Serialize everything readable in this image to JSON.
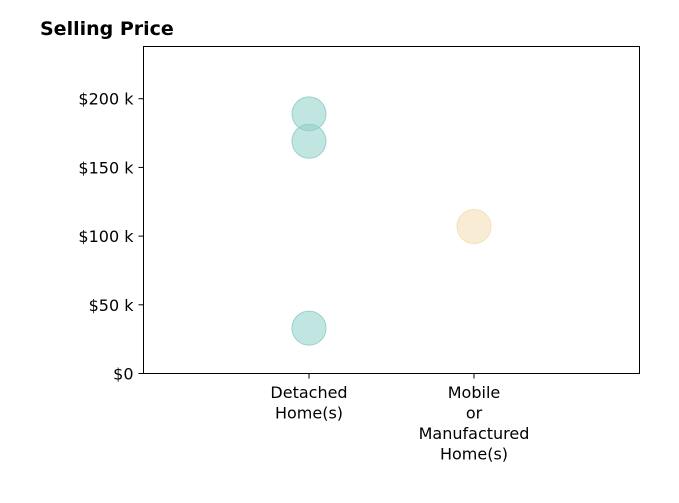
{
  "chart_data": {
    "type": "scatter",
    "title": "Selling Price",
    "xlabel": "",
    "ylabel": "",
    "categories": [
      [
        "Detached",
        "Home(s)"
      ],
      [
        "Mobile",
        "or",
        "Manufactured",
        "Home(s)"
      ]
    ],
    "ylim": [
      0,
      238000
    ],
    "yticks": [
      {
        "value": 0,
        "label": "$0"
      },
      {
        "value": 50000,
        "label": "$50 k"
      },
      {
        "value": 100000,
        "label": "$100 k"
      },
      {
        "value": 150000,
        "label": "$150 k"
      },
      {
        "value": 200000,
        "label": "$200 k"
      }
    ],
    "points": [
      {
        "category": 0,
        "value": 189000,
        "color": "#8ecfc7"
      },
      {
        "category": 0,
        "value": 169000,
        "color": "#8ecfc7"
      },
      {
        "category": 0,
        "value": 33000,
        "color": "#8ecfc7"
      },
      {
        "category": 1,
        "value": 107000,
        "color": "#f3deb0"
      }
    ],
    "grid": false,
    "legend": "none"
  }
}
